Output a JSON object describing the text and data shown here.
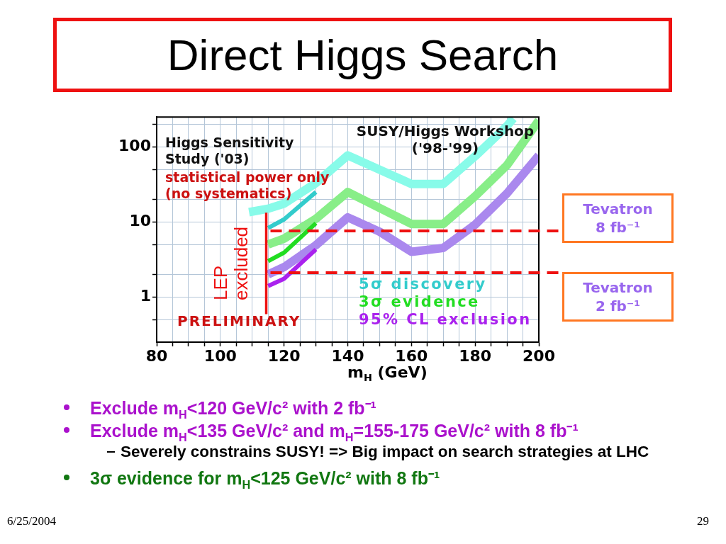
{
  "chart_data": {
    "type": "line",
    "title": "Direct Higgs Search",
    "xlabel": "m$_{H}$ (GeV)",
    "xlim": [
      80,
      200
    ],
    "xticks": [
      80,
      {
        "value": 85,
        "label": null
      },
      {
        "value": 90,
        "label": null
      },
      {
        "value": 95,
        "label": null
      },
      100,
      {
        "value": 105,
        "label": null
      },
      {
        "value": 110,
        "label": null
      },
      {
        "value": 115,
        "label": null
      },
      120,
      {
        "value": 125,
        "label": null
      },
      {
        "value": 130,
        "label": null
      },
      {
        "value": 135,
        "label": null
      },
      140,
      {
        "value": 145,
        "label": null
      },
      {
        "value": 150,
        "label": null
      },
      {
        "value": 155,
        "label": null
      },
      160,
      {
        "value": 165,
        "label": null
      },
      {
        "value": 170,
        "label": null
      },
      {
        "value": 175,
        "label": null
      },
      180,
      {
        "value": 185,
        "label": null
      },
      {
        "value": 190,
        "label": null
      },
      {
        "value": 195,
        "label": null
      },
      200
    ],
    "ylim": [
      0.25,
      250
    ],
    "yticks": [
      {
        "value": 0.5,
        "label": null
      },
      1,
      {
        "value": 2,
        "label": null
      },
      {
        "value": 5,
        "label": null
      },
      10,
      {
        "value": 20,
        "label": null
      },
      {
        "value": 50,
        "label": null
      },
      100,
      {
        "value": 200,
        "label": null
      }
    ],
    "log": true,
    "grid": true,
    "legend": "bottom right",
    "marker": "none",
    "line_style": "solid",
    "series": [
      {
        "x": [
          109,
          115,
          120,
          130,
          140,
          160,
          170,
          180,
          190,
          192
        ],
        "values": [
          13.5,
          15,
          17.5,
          33,
          77,
          32,
          32,
          75,
          190,
          240
        ],
        "color": "#88fbe9"
      },
      {
        "x": [
          115,
          120,
          130,
          140,
          160,
          170,
          180,
          190,
          200
        ],
        "values": [
          5,
          6,
          11,
          25,
          9.4,
          9.4,
          22,
          57,
          225
        ],
        "color": "#88ee88"
      },
      {
        "x": [
          115,
          120,
          130,
          140,
          150,
          160,
          170,
          180,
          190,
          200
        ],
        "values": [
          2,
          2.5,
          4.9,
          11.5,
          7.4,
          4,
          4.5,
          9.2,
          24,
          77
        ],
        "color": "#aa88ee"
      },
      {
        "name": "5σ discovery",
        "x": [
          115,
          120,
          130
        ],
        "values": [
          8.3,
          10.8,
          25
        ],
        "color": "#33cccc"
      },
      {
        "name": "3σ evidence",
        "x": [
          115,
          120,
          130
        ],
        "values": [
          3,
          3.9,
          9.6
        ],
        "color": "#22dd22"
      },
      {
        "name": "95% CL exclusion",
        "x": [
          115,
          120,
          130
        ],
        "values": [
          1.4,
          1.75,
          4.3
        ],
        "color": "#aa22ee"
      }
    ],
    "ref_lines": [
      {
        "axis": "x",
        "value": 114.4,
        "label": "LEP excluded",
        "color": "#ee1111",
        "line_style": "solid"
      },
      {
        "axis": "y",
        "value": 7.6,
        "label": "Tevatron 8 fb⁻¹",
        "color": "#ee1111",
        "line_style": "dashed"
      },
      {
        "axis": "y",
        "value": 2.1,
        "label": "Tevatron 2 fb⁻¹",
        "color": "#ee1111",
        "line_style": "dashed"
      }
    ],
    "annotations": [
      "Higgs Sensitivity Study ('03)",
      "statistical power only (no systematics)",
      "SUSY/Higgs Workshop ('98-'99)",
      "PRELIMINARY",
      "Exclude m$_{H}$<120 GeV/c² with 2 fb⁻¹",
      "Exclude m$_{H}$<135 GeV/c² and m$_{H}$=155-175 GeV/c² with 8 fb⁻¹",
      "Severely constrains SUSY! => Big impact on search strategies at LHC",
      "3σ evidence for m$_{H}$<125 GeV/c² with 8 fb⁻¹",
      "6/25/2004",
      "29"
    ]
  }
}
